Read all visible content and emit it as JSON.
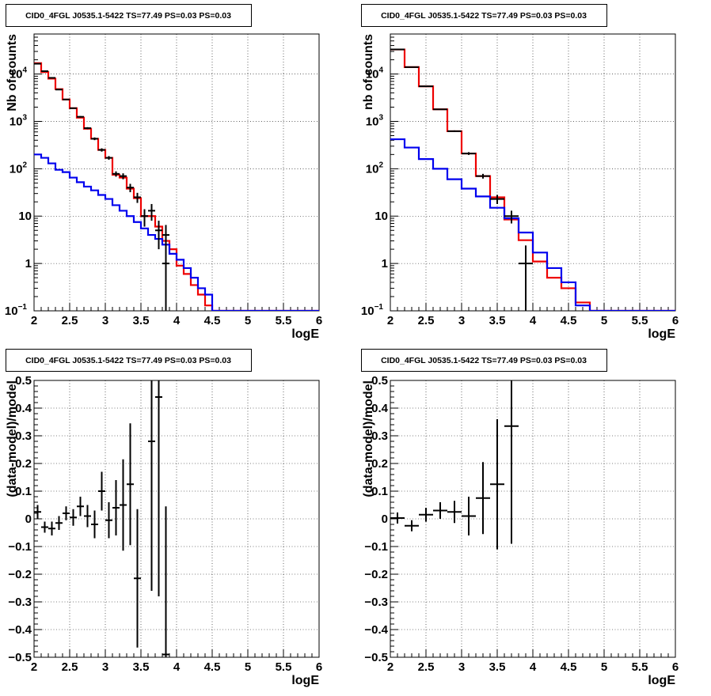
{
  "chart_data": [
    {
      "type": "line",
      "title": "CID0_4FGL J0535.1-5422 TS=77.49 PS=0.03 PS=0.03",
      "xlabel": "logE",
      "ylabel": "Nb of counts",
      "xlim": [
        2,
        6
      ],
      "ylim": [
        0.1,
        70000
      ],
      "yscale": "log",
      "grid": true,
      "x_ticks": [
        "2",
        "2.5",
        "3",
        "3.5",
        "4",
        "4.5",
        "5",
        "5.5",
        "6"
      ],
      "y_ticks": [
        "10^-1",
        "1",
        "10",
        "10^2",
        "10^3",
        "10^4"
      ],
      "bin_edges": [
        2.0,
        2.1,
        2.2,
        2.3,
        2.4,
        2.5,
        2.6,
        2.7,
        2.8,
        2.9,
        3.0,
        3.1,
        3.2,
        3.3,
        3.4,
        3.5,
        3.6,
        3.7,
        3.8,
        3.9,
        4.0,
        4.1,
        4.2,
        4.3,
        4.4,
        4.5,
        4.6,
        4.7,
        4.8,
        4.9,
        5.0,
        5.1,
        5.2,
        5.3,
        5.4,
        5.5,
        5.6,
        5.7,
        5.8,
        5.9,
        6.0
      ],
      "series": [
        {
          "color": "#ee0000",
          "style": "step",
          "values": [
            17000,
            11000,
            8000,
            4800,
            2900,
            1900,
            1200,
            700,
            430,
            250,
            170,
            75,
            65,
            38,
            24,
            10,
            10,
            6,
            3.0,
            2.0,
            0.9,
            0.6,
            0.35,
            0.22,
            0.13,
            0.1,
            0.1,
            0.1,
            0.1,
            0.1,
            0.1,
            0.1,
            0.1,
            0.1,
            0.1,
            0.1,
            0.1,
            0.1,
            0.1,
            0.1
          ]
        },
        {
          "color": "#0000ee",
          "style": "step",
          "values": [
            200,
            170,
            130,
            95,
            85,
            65,
            52,
            42,
            35,
            28,
            23,
            17,
            13,
            10,
            7.5,
            5.5,
            4.0,
            3.3,
            2.5,
            1.6,
            1.2,
            0.8,
            0.5,
            0.3,
            0.22,
            0.1,
            0.1,
            0.1,
            0.1,
            0.1,
            0.1,
            0.1,
            0.1,
            0.1,
            0.1,
            0.1,
            0.1,
            0.1,
            0.1,
            0.1
          ]
        }
      ],
      "data_points": {
        "color": "#000000",
        "x": [
          2.05,
          2.15,
          2.25,
          2.35,
          2.45,
          2.55,
          2.65,
          2.75,
          2.85,
          2.95,
          3.05,
          3.15,
          3.25,
          3.35,
          3.45,
          3.55,
          3.65,
          3.75,
          3.85
        ],
        "y": [
          16500,
          11500,
          8300,
          4700,
          2900,
          1900,
          1250,
          720,
          430,
          250,
          170,
          78,
          70,
          40,
          25,
          10,
          13,
          5,
          4
        ],
        "yerr_low": [
          200,
          150,
          120,
          90,
          70,
          55,
          45,
          35,
          28,
          20,
          15,
          10,
          10,
          8,
          6,
          4,
          5,
          3,
          2.5
        ],
        "yerr_high": [
          200,
          150,
          120,
          90,
          70,
          55,
          45,
          35,
          28,
          20,
          15,
          10,
          10,
          8,
          6,
          4,
          5,
          3,
          2.5
        ]
      },
      "data_points_extra": {
        "x": [
          3.85
        ],
        "y": [
          1
        ],
        "yerr_low": [
          0.93
        ],
        "yerr_high": [
          1.3
        ]
      }
    },
    {
      "type": "line",
      "title": "CID0_4FGL J0535.1-5422 TS=77.49 PS=0.03 PS=0.03",
      "xlabel": "logE",
      "ylabel": "nb of counts",
      "xlim": [
        2,
        6
      ],
      "ylim": [
        0.1,
        70000
      ],
      "yscale": "log",
      "grid": true,
      "x_ticks": [
        "2",
        "2.5",
        "3",
        "3.5",
        "4",
        "4.5",
        "5",
        "5.5",
        "6"
      ],
      "y_ticks": [
        "10^-1",
        "1",
        "10",
        "10^2",
        "10^3",
        "10^4"
      ],
      "bin_edges": [
        2.0,
        2.2,
        2.4,
        2.6,
        2.8,
        3.0,
        3.2,
        3.4,
        3.6,
        3.8,
        4.0,
        4.2,
        4.4,
        4.6,
        4.8,
        5.0,
        5.2,
        5.4,
        5.6,
        5.8,
        6.0
      ],
      "series": [
        {
          "color": "#ee0000",
          "style": "step",
          "values": [
            33000,
            14000,
            5500,
            1800,
            620,
            210,
            70,
            25,
            8.5,
            3.1,
            1.1,
            0.5,
            0.3,
            0.15,
            0.1,
            0.1,
            0.1,
            0.1,
            0.1,
            0.1
          ]
        },
        {
          "color": "#0000ee",
          "style": "step",
          "values": [
            420,
            280,
            160,
            100,
            60,
            38,
            26,
            15,
            9,
            4.5,
            1.7,
            0.8,
            0.4,
            0.13,
            0.1,
            0.1,
            0.1,
            0.1,
            0.1,
            0.1
          ]
        }
      ],
      "data_points": {
        "color": "#000000",
        "x": [
          2.1,
          2.3,
          2.5,
          2.7,
          2.9,
          3.1,
          3.3,
          3.5,
          3.7,
          3.9
        ],
        "y": [
          33000,
          14000,
          5500,
          1800,
          620,
          210,
          70,
          23,
          10,
          1
        ],
        "yerr_low": [
          180,
          120,
          75,
          42,
          25,
          14,
          8,
          5,
          3,
          0.9
        ],
        "yerr_high": [
          180,
          120,
          75,
          42,
          25,
          14,
          8,
          5,
          3,
          1.4
        ]
      }
    },
    {
      "type": "scatter",
      "title": "CID0_4FGL J0535.1-5422 TS=77.49 PS=0.03 PS=0.03",
      "xlabel": "logE",
      "ylabel": "(data-model)/model",
      "xlim": [
        2,
        6
      ],
      "ylim": [
        -0.5,
        0.5
      ],
      "grid": true,
      "x_ticks": [
        "2",
        "2.5",
        "3",
        "3.5",
        "4",
        "4.5",
        "5",
        "5.5",
        "6"
      ],
      "y_ticks": [
        "-0.5",
        "-0.4",
        "-0.3",
        "-0.2",
        "-0.1",
        "0",
        "0.1",
        "0.2",
        "0.3",
        "0.4",
        "0.5"
      ],
      "x_half_width": 0.05,
      "x": [
        2.05,
        2.15,
        2.25,
        2.35,
        2.45,
        2.55,
        2.65,
        2.75,
        2.85,
        2.95,
        3.05,
        3.15,
        3.25,
        3.35,
        3.45,
        3.65,
        3.75,
        3.85
      ],
      "y": [
        0.025,
        -0.03,
        -0.035,
        -0.015,
        0.02,
        0.005,
        0.045,
        0.01,
        -0.02,
        0.1,
        -0.005,
        0.04,
        0.05,
        0.125,
        -0.215,
        0.28,
        0.44,
        -0.49
      ],
      "yerr": [
        0.025,
        0.02,
        0.025,
        0.025,
        0.025,
        0.03,
        0.035,
        0.04,
        0.05,
        0.07,
        0.065,
        0.1,
        0.165,
        0.22,
        0.25,
        0.54,
        0.72,
        0.535
      ]
    },
    {
      "type": "scatter",
      "title": "CID0_4FGL J0535.1-5422 TS=77.49 PS=0.03 PS=0.03",
      "xlabel": "logE",
      "ylabel": "(data-model)/model",
      "xlim": [
        2,
        6
      ],
      "ylim": [
        -0.5,
        0.5
      ],
      "grid": true,
      "x_ticks": [
        "2",
        "2.5",
        "3",
        "3.5",
        "4",
        "4.5",
        "5",
        "5.5",
        "6"
      ],
      "y_ticks": [
        "-0.5",
        "-0.4",
        "-0.3",
        "-0.2",
        "-0.1",
        "0",
        "0.1",
        "0.2",
        "0.3",
        "0.4",
        "0.5"
      ],
      "x_half_width": 0.1,
      "x": [
        2.1,
        2.3,
        2.5,
        2.7,
        2.9,
        3.1,
        3.3,
        3.5,
        3.7
      ],
      "y": [
        0.003,
        -0.025,
        0.015,
        0.03,
        0.025,
        0.01,
        0.075,
        0.125,
        0.335
      ],
      "yerr": [
        0.02,
        0.02,
        0.025,
        0.03,
        0.04,
        0.07,
        0.13,
        0.235,
        0.425
      ]
    }
  ]
}
